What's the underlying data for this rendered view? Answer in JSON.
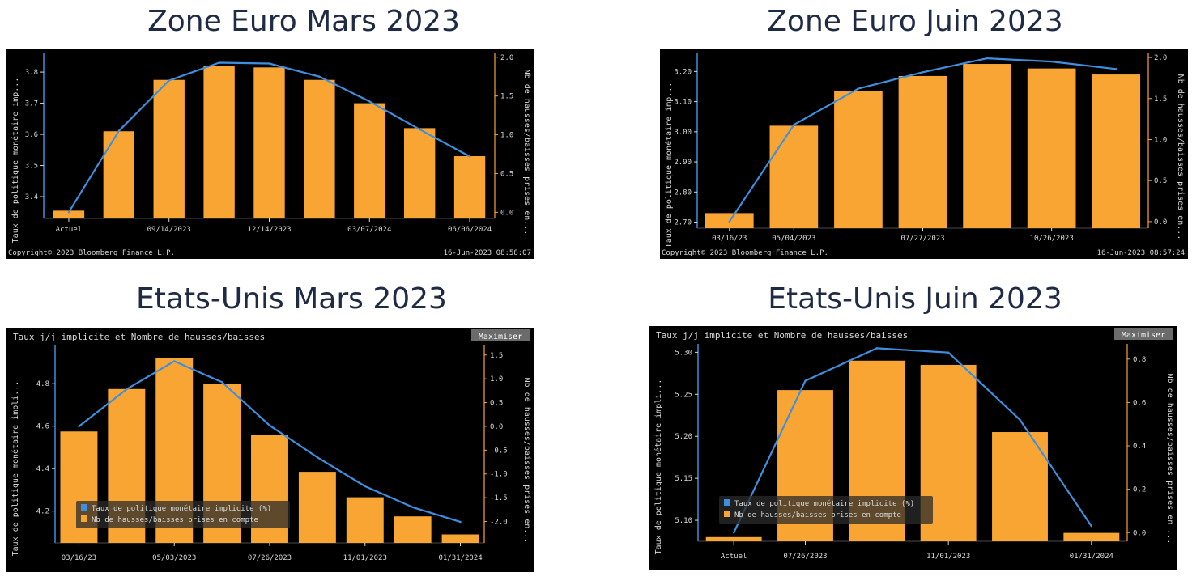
{
  "colors": {
    "bar": "#f9a534",
    "line": "#3d8fe0",
    "axis": "#f9a534",
    "text": "#d9d9d9",
    "panel": "#000000",
    "grid": "#5a5a5a"
  },
  "chart_data": [
    {
      "type": "bar",
      "title": "Zone Euro Mars 2023",
      "panel_title": "",
      "ylabel": "Taux de politique monétaire imp...",
      "y2label": "Nb de hausses/baisses prises en...",
      "ylim": [
        3.33,
        3.86
      ],
      "y_ticks": [
        3.4,
        3.5,
        3.6,
        3.7,
        3.8
      ],
      "y2lim": [
        -0.08,
        2.05
      ],
      "y2_ticks": [
        0.0,
        0.5,
        1.0,
        1.5,
        2.0
      ],
      "x_tick_labels": [
        "Actuel",
        "09/14/2023",
        "12/14/2023",
        "03/07/2024",
        "06/06/2024"
      ],
      "x_tick_positions": [
        0,
        2,
        4,
        6,
        8
      ],
      "x": [
        0,
        1,
        2,
        3,
        4,
        5,
        6,
        7,
        8
      ],
      "series": [
        {
          "kind": "bar",
          "axis": "y",
          "values": [
            3.355,
            3.61,
            3.775,
            3.82,
            3.815,
            3.775,
            3.7,
            3.62,
            3.53
          ]
        },
        {
          "kind": "line",
          "axis": "y2",
          "values": [
            0.0,
            1.05,
            1.7,
            1.93,
            1.92,
            1.75,
            1.43,
            1.07,
            0.72
          ]
        }
      ],
      "legend": [],
      "maximize_label": "",
      "footer_left": "Copyright© 2023 Bloomberg Finance L.P.",
      "footer_right": "16-Jun-2023 08:58:07"
    },
    {
      "type": "bar",
      "title": "Zone Euro Juin 2023",
      "panel_title": "",
      "ylabel": "Taux de politique monétaire imp...",
      "y2label": "Nb de hausses/baisses prises en...",
      "ylim": [
        2.68,
        3.26
      ],
      "y_ticks": [
        2.7,
        2.8,
        2.9,
        3.0,
        3.1,
        3.2
      ],
      "y2lim": [
        -0.08,
        2.05
      ],
      "y2_ticks": [
        0.0,
        0.5,
        1.0,
        1.5,
        2.0
      ],
      "x_tick_labels": [
        "03/16/23",
        "05/04/2023",
        "07/27/2023",
        "10/26/2023"
      ],
      "x_tick_positions": [
        0,
        1,
        3,
        5
      ],
      "x": [
        0,
        1,
        2,
        3,
        4,
        5,
        6
      ],
      "series": [
        {
          "kind": "bar",
          "axis": "y",
          "values": [
            2.73,
            3.02,
            3.135,
            3.185,
            3.225,
            3.21,
            3.19
          ]
        },
        {
          "kind": "line",
          "axis": "y2",
          "values": [
            0.0,
            1.18,
            1.62,
            1.82,
            1.99,
            1.95,
            1.86
          ]
        }
      ],
      "legend": [],
      "maximize_label": "",
      "footer_left": "Copyright© 2023 Bloomberg Finance L.P.",
      "footer_right": "16-Jun-2023 08:57:24"
    },
    {
      "type": "bar",
      "title": "Etats-Unis Mars 2023",
      "panel_title": "Taux j/j implicite et Nombre de hausses/baisses",
      "ylabel": "Taux de politique monétaire impli...",
      "y2label": "Nb de hausses/baisses prises en...",
      "ylim": [
        4.05,
        4.98
      ],
      "y_ticks": [
        4.2,
        4.4,
        4.6,
        4.8
      ],
      "y2lim": [
        -2.45,
        1.7
      ],
      "y2_ticks": [
        -2.0,
        -1.5,
        -1.0,
        -0.5,
        0.0,
        0.5,
        1.0,
        1.5
      ],
      "x_tick_labels": [
        "03/16/23",
        "05/03/2023",
        "07/26/2023",
        "11/01/2023",
        "01/31/2024"
      ],
      "x_tick_positions": [
        0,
        2,
        4,
        6,
        8
      ],
      "x": [
        0,
        1,
        2,
        3,
        4,
        5,
        6,
        7,
        8
      ],
      "series": [
        {
          "kind": "bar",
          "axis": "y",
          "values": [
            4.575,
            4.775,
            4.92,
            4.8,
            4.56,
            4.385,
            4.265,
            4.175,
            4.09
          ]
        },
        {
          "kind": "line",
          "axis": "y2",
          "values": [
            0.0,
            0.78,
            1.37,
            0.93,
            0.02,
            -0.65,
            -1.26,
            -1.7,
            -2.01
          ]
        }
      ],
      "legend": [
        "Taux de politique monétaire implicite (%)",
        "Nb de hausses/baisses prises en compte"
      ],
      "maximize_label": "Maximiser",
      "footer_left": "",
      "footer_right": ""
    },
    {
      "type": "bar",
      "title": "Etats-Unis Juin 2023",
      "panel_title": "Taux j/j implicite et Nombre de hausses/baisses",
      "ylabel": "Taux de politique monétaire impli...",
      "y2label": "Nb de hausses/baisses prises en ...",
      "ylim": [
        5.075,
        5.31
      ],
      "y_ticks": [
        5.1,
        5.15,
        5.2,
        5.25,
        5.3
      ],
      "y2lim": [
        -0.04,
        0.87
      ],
      "y2_ticks": [
        0.0,
        0.2,
        0.4,
        0.6,
        0.8
      ],
      "x_tick_labels": [
        "Actuel",
        "07/26/2023",
        "11/01/2023",
        "01/31/2024"
      ],
      "x_tick_positions": [
        0,
        1,
        3,
        5
      ],
      "x": [
        0,
        1,
        2,
        3,
        4,
        5
      ],
      "series": [
        {
          "kind": "bar",
          "axis": "y",
          "values": [
            5.08,
            5.255,
            5.29,
            5.285,
            5.205,
            5.085
          ]
        },
        {
          "kind": "line",
          "axis": "y2",
          "values": [
            0.0,
            0.7,
            0.85,
            0.83,
            0.52,
            0.03
          ]
        }
      ],
      "legend": [
        "Taux de politique monétaire implicite (%)",
        "Nb de hausses/baisses prises en compte"
      ],
      "maximize_label": "Maximiser",
      "footer_left": "",
      "footer_right": ""
    }
  ]
}
